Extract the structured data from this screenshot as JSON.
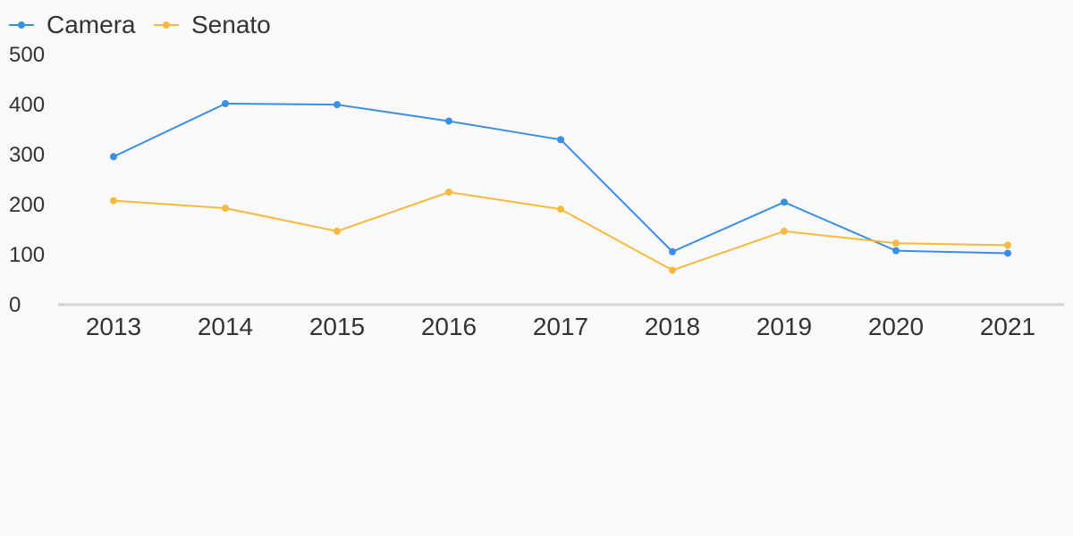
{
  "chart_data": {
    "type": "line",
    "categories": [
      "2013",
      "2014",
      "2015",
      "2016",
      "2017",
      "2018",
      "2019",
      "2020",
      "2021"
    ],
    "series": [
      {
        "name": "Camera",
        "color": "#3b8fe3",
        "values": [
          294,
          400,
          398,
          365,
          328,
          104,
          203,
          106,
          101
        ]
      },
      {
        "name": "Senato",
        "color": "#f9b93e",
        "values": [
          206,
          191,
          145,
          223,
          189,
          67,
          145,
          121,
          117
        ]
      }
    ],
    "ylim": [
      0,
      500
    ],
    "yticks": [
      "0",
      "100",
      "200",
      "300",
      "400",
      "500"
    ],
    "legend": "top-left",
    "grid": false,
    "axis_color": "#d4d4d4"
  }
}
